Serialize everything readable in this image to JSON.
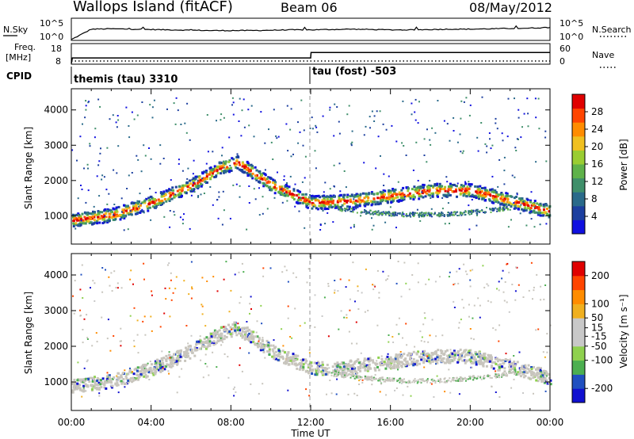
{
  "header": {
    "station": "Wallops Island (fitACF)",
    "beam": "Beam 06",
    "date": "08/May/2012"
  },
  "panel_labels": {
    "nsky": "N.Sky",
    "nsearch": "N.Search",
    "freq": "Freq.",
    "freq_unit": "[MHz]",
    "nave": "Nave",
    "cpid": "CPID"
  },
  "cpid": [
    {
      "label": "themis (tau) 3310"
    },
    {
      "label": "tau (fost) -503"
    }
  ],
  "colors": {
    "curve": "#000000",
    "scatter_ground": "#c8c5bd",
    "marker_line": "#9a9a9a"
  },
  "chart_data": [
    {
      "type": "line",
      "name": "noise",
      "left_ticks": [
        "10^5",
        "10^0"
      ],
      "right_ticks": [
        "10^5",
        "10^0"
      ],
      "ylim_log10": [
        0,
        5
      ],
      "x": [
        0,
        1,
        2,
        3,
        4,
        5,
        6,
        7,
        8,
        9,
        10,
        11,
        12,
        13,
        14,
        15,
        16,
        17,
        18,
        19,
        20,
        21,
        22,
        23,
        24
      ],
      "series": [
        {
          "values": [
            0.0,
            3.0,
            3.1,
            3.0,
            2.9,
            2.8,
            2.7,
            2.6,
            2.6,
            2.6,
            2.7,
            2.8,
            2.8,
            2.9,
            3.0,
            2.9,
            2.8,
            2.8,
            2.9,
            3.0,
            3.0,
            3.1,
            3.2,
            3.3,
            3.5
          ]
        }
      ]
    },
    {
      "type": "line",
      "name": "frequency",
      "left_ticks": [
        "18",
        "8"
      ],
      "right_ticks": [
        "60",
        "0"
      ],
      "ylim": [
        8,
        18
      ],
      "x": [
        0,
        0.05,
        12,
        12.02,
        24
      ],
      "series": [
        {
          "values": [
            8,
            11,
            11,
            14,
            14
          ]
        }
      ],
      "nave_level": 1
    },
    {
      "type": "heatmap",
      "name": "power",
      "ylabel": "Slant Range [km]",
      "yticks": [
        1000,
        2000,
        3000,
        4000
      ],
      "ylim": [
        200,
        4600
      ],
      "xlim": [
        0,
        24
      ],
      "colorbar": {
        "label": "Power [dB]",
        "ticks": [
          4,
          8,
          12,
          16,
          20,
          24,
          28
        ],
        "colors": [
          "#1010e0",
          "#1c3f9f",
          "#2a6a8a",
          "#3f8f6a",
          "#5fb24a",
          "#9acd32",
          "#f0c020",
          "#ff8c00",
          "#ff4500",
          "#e00000"
        ],
        "range": [
          0,
          32
        ]
      },
      "band": {
        "hours": [
          0,
          2,
          4,
          6,
          7.5,
          8.3,
          10,
          12,
          14,
          16,
          18,
          20,
          22,
          24
        ],
        "range_km": [
          900,
          1050,
          1400,
          1900,
          2400,
          2550,
          1900,
          1400,
          1450,
          1600,
          1750,
          1750,
          1450,
          1150
        ]
      }
    },
    {
      "type": "heatmap",
      "name": "velocity",
      "ylabel": "Slant Range [km]",
      "yticks": [
        1000,
        2000,
        3000,
        4000
      ],
      "ylim": [
        200,
        4600
      ],
      "xlabel": "Time UT",
      "xticks": [
        "00:00",
        "04:00",
        "08:00",
        "12:00",
        "16:00",
        "20:00",
        "00:00"
      ],
      "xlim": [
        0,
        24
      ],
      "colorbar": {
        "label": "Velocity [m s⁻¹]",
        "ticks": [
          200,
          100,
          50,
          15,
          -15,
          -50,
          -100,
          -200
        ],
        "colors": [
          "#1010d0",
          "#2050c0",
          "#4caf50",
          "#8fd14f",
          "#c8c8c8",
          "#c8c8c8",
          "#f0b020",
          "#ff8c00",
          "#ff4500",
          "#e00000"
        ],
        "range": [
          -250,
          250
        ]
      }
    }
  ]
}
